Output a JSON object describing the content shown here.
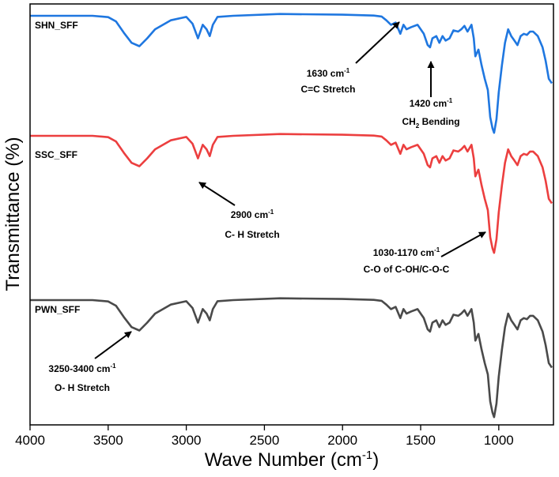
{
  "chart_data": {
    "type": "line",
    "xlabel": "Wave Number (cm",
    "xlabel_sup": "-1",
    "xlabel_end": ")",
    "ylabel": "Transmittance (%)",
    "xlim": [
      4000,
      650
    ],
    "x_reversed": true,
    "x_ticks": [
      4000,
      3500,
      3000,
      2500,
      2000,
      1500,
      1000
    ],
    "grid": false,
    "series": [
      {
        "name": "SHN_SFF",
        "color": "#1f77e0",
        "offset": 0,
        "values": [
          [
            3700,
            0.0
          ],
          [
            3600,
            0.0
          ],
          [
            3500,
            0.6
          ],
          [
            3450,
            2.5
          ],
          [
            3400,
            7.5
          ],
          [
            3350,
            12.0
          ],
          [
            3300,
            13.5
          ],
          [
            3250,
            10.0
          ],
          [
            3200,
            6.0
          ],
          [
            3100,
            2.0
          ],
          [
            3000,
            0.5
          ],
          [
            2960,
            3.5
          ],
          [
            2925,
            10.0
          ],
          [
            2895,
            4.0
          ],
          [
            2870,
            6.0
          ],
          [
            2850,
            9.0
          ],
          [
            2830,
            4.0
          ],
          [
            2800,
            0.5
          ],
          [
            2700,
            0.0
          ],
          [
            2400,
            -0.8
          ],
          [
            2000,
            -0.5
          ],
          [
            1800,
            -0.1
          ],
          [
            1750,
            0.3
          ],
          [
            1720,
            2.0
          ],
          [
            1690,
            4.0
          ],
          [
            1660,
            3.0
          ],
          [
            1630,
            8.0
          ],
          [
            1610,
            4.0
          ],
          [
            1590,
            6.0
          ],
          [
            1560,
            5.0
          ],
          [
            1520,
            4.0
          ],
          [
            1480,
            8.0
          ],
          [
            1455,
            13.0
          ],
          [
            1440,
            14.0
          ],
          [
            1425,
            10.0
          ],
          [
            1400,
            9.0
          ],
          [
            1380,
            12.0
          ],
          [
            1360,
            9.0
          ],
          [
            1340,
            11.0
          ],
          [
            1315,
            10.0
          ],
          [
            1290,
            6.5
          ],
          [
            1260,
            7.0
          ],
          [
            1240,
            6.0
          ],
          [
            1220,
            4.5
          ],
          [
            1200,
            7.0
          ],
          [
            1175,
            4.0
          ],
          [
            1160,
            10.0
          ],
          [
            1150,
            18.0
          ],
          [
            1130,
            15.0
          ],
          [
            1110,
            22.0
          ],
          [
            1090,
            28.0
          ],
          [
            1070,
            33.0
          ],
          [
            1055,
            45.0
          ],
          [
            1040,
            50.0
          ],
          [
            1030,
            52.0
          ],
          [
            1015,
            46.0
          ],
          [
            1000,
            34.0
          ],
          [
            980,
            22.0
          ],
          [
            960,
            12.0
          ],
          [
            940,
            6.0
          ],
          [
            920,
            9.0
          ],
          [
            900,
            11.0
          ],
          [
            880,
            13.0
          ],
          [
            860,
            9.0
          ],
          [
            840,
            8.0
          ],
          [
            820,
            8.5
          ],
          [
            800,
            7.0
          ],
          [
            780,
            7.0
          ],
          [
            750,
            9.0
          ],
          [
            720,
            14.0
          ],
          [
            700,
            20.0
          ],
          [
            680,
            28.0
          ],
          [
            660,
            30.0
          ]
        ]
      },
      {
        "name": "SSC_SFF",
        "color": "#ec3f3f",
        "offset": 1,
        "values": [
          [
            3700,
            0.0
          ],
          [
            3600,
            0.0
          ],
          [
            3500,
            0.6
          ],
          [
            3450,
            2.5
          ],
          [
            3400,
            7.5
          ],
          [
            3350,
            12.0
          ],
          [
            3300,
            13.5
          ],
          [
            3250,
            10.0
          ],
          [
            3200,
            6.0
          ],
          [
            3100,
            2.0
          ],
          [
            3000,
            0.5
          ],
          [
            2960,
            3.5
          ],
          [
            2925,
            10.0
          ],
          [
            2895,
            4.0
          ],
          [
            2870,
            6.0
          ],
          [
            2850,
            9.0
          ],
          [
            2830,
            4.0
          ],
          [
            2800,
            0.5
          ],
          [
            2700,
            0.0
          ],
          [
            2400,
            -0.8
          ],
          [
            2000,
            -0.5
          ],
          [
            1800,
            -0.1
          ],
          [
            1750,
            0.3
          ],
          [
            1720,
            2.0
          ],
          [
            1690,
            4.0
          ],
          [
            1660,
            3.0
          ],
          [
            1630,
            8.0
          ],
          [
            1610,
            4.0
          ],
          [
            1590,
            6.0
          ],
          [
            1560,
            5.0
          ],
          [
            1520,
            4.0
          ],
          [
            1480,
            8.0
          ],
          [
            1455,
            13.0
          ],
          [
            1440,
            14.0
          ],
          [
            1425,
            10.0
          ],
          [
            1400,
            9.0
          ],
          [
            1380,
            12.0
          ],
          [
            1360,
            9.0
          ],
          [
            1340,
            11.0
          ],
          [
            1315,
            10.0
          ],
          [
            1290,
            6.5
          ],
          [
            1260,
            7.0
          ],
          [
            1240,
            6.0
          ],
          [
            1220,
            4.5
          ],
          [
            1200,
            7.0
          ],
          [
            1175,
            4.0
          ],
          [
            1160,
            10.0
          ],
          [
            1150,
            18.0
          ],
          [
            1130,
            15.0
          ],
          [
            1110,
            22.0
          ],
          [
            1090,
            28.0
          ],
          [
            1070,
            33.0
          ],
          [
            1055,
            45.0
          ],
          [
            1040,
            50.0
          ],
          [
            1030,
            52.0
          ],
          [
            1015,
            46.0
          ],
          [
            1000,
            34.0
          ],
          [
            980,
            22.0
          ],
          [
            960,
            12.0
          ],
          [
            940,
            6.0
          ],
          [
            920,
            9.0
          ],
          [
            900,
            11.0
          ],
          [
            880,
            13.0
          ],
          [
            860,
            9.0
          ],
          [
            840,
            8.0
          ],
          [
            820,
            8.5
          ],
          [
            800,
            7.0
          ],
          [
            780,
            7.0
          ],
          [
            750,
            9.0
          ],
          [
            720,
            14.0
          ],
          [
            700,
            20.0
          ],
          [
            680,
            28.0
          ],
          [
            660,
            30.0
          ]
        ]
      },
      {
        "name": "PWN_SFF",
        "color": "#4a4a4a",
        "offset": 2,
        "values": [
          [
            3700,
            0.0
          ],
          [
            3600,
            0.0
          ],
          [
            3500,
            0.6
          ],
          [
            3450,
            2.5
          ],
          [
            3400,
            7.5
          ],
          [
            3350,
            12.0
          ],
          [
            3300,
            13.5
          ],
          [
            3250,
            10.0
          ],
          [
            3200,
            6.0
          ],
          [
            3100,
            2.0
          ],
          [
            3000,
            0.5
          ],
          [
            2960,
            3.5
          ],
          [
            2925,
            10.0
          ],
          [
            2895,
            4.0
          ],
          [
            2870,
            6.0
          ],
          [
            2850,
            9.0
          ],
          [
            2830,
            4.0
          ],
          [
            2800,
            0.5
          ],
          [
            2700,
            0.0
          ],
          [
            2400,
            -0.8
          ],
          [
            2000,
            -0.5
          ],
          [
            1800,
            -0.1
          ],
          [
            1750,
            0.3
          ],
          [
            1720,
            2.0
          ],
          [
            1690,
            4.0
          ],
          [
            1660,
            3.0
          ],
          [
            1630,
            8.0
          ],
          [
            1610,
            4.0
          ],
          [
            1590,
            6.0
          ],
          [
            1560,
            5.0
          ],
          [
            1520,
            4.0
          ],
          [
            1480,
            8.0
          ],
          [
            1455,
            13.0
          ],
          [
            1440,
            14.0
          ],
          [
            1425,
            10.0
          ],
          [
            1400,
            9.0
          ],
          [
            1380,
            12.0
          ],
          [
            1360,
            9.0
          ],
          [
            1340,
            11.0
          ],
          [
            1315,
            10.0
          ],
          [
            1290,
            6.5
          ],
          [
            1260,
            7.0
          ],
          [
            1240,
            6.0
          ],
          [
            1220,
            4.5
          ],
          [
            1200,
            7.0
          ],
          [
            1175,
            4.0
          ],
          [
            1160,
            10.0
          ],
          [
            1150,
            18.0
          ],
          [
            1130,
            15.0
          ],
          [
            1110,
            22.0
          ],
          [
            1090,
            28.0
          ],
          [
            1070,
            33.0
          ],
          [
            1055,
            45.0
          ],
          [
            1040,
            50.0
          ],
          [
            1030,
            52.0
          ],
          [
            1015,
            46.0
          ],
          [
            1000,
            34.0
          ],
          [
            980,
            22.0
          ],
          [
            960,
            12.0
          ],
          [
            940,
            6.0
          ],
          [
            920,
            9.0
          ],
          [
            900,
            11.0
          ],
          [
            880,
            13.0
          ],
          [
            860,
            9.0
          ],
          [
            840,
            8.0
          ],
          [
            820,
            8.5
          ],
          [
            800,
            7.0
          ],
          [
            780,
            7.0
          ],
          [
            750,
            9.0
          ],
          [
            720,
            14.0
          ],
          [
            700,
            20.0
          ],
          [
            680,
            28.0
          ],
          [
            660,
            30.0
          ]
        ]
      }
    ],
    "annotations": [
      {
        "id": "a1630",
        "line1": "1630 cm",
        "sup": "-1",
        "line2": "C=C Stretch"
      },
      {
        "id": "a1420",
        "line1": "1420 cm",
        "sup": "-1",
        "line2a": "CH",
        "sub": "2",
        "line2b": " Bending"
      },
      {
        "id": "a2900",
        "line1": "2900 cm",
        "sup": "-1",
        "line2": "C- H Stretch"
      },
      {
        "id": "a1030",
        "line1": "1030-1170 cm",
        "sup": "-1",
        "line2": "C-O of C-OH/C-O-C"
      },
      {
        "id": "a3250",
        "line1": "3250-3400 cm",
        "sup": "-1",
        "line2": "O- H Stretch"
      }
    ]
  }
}
